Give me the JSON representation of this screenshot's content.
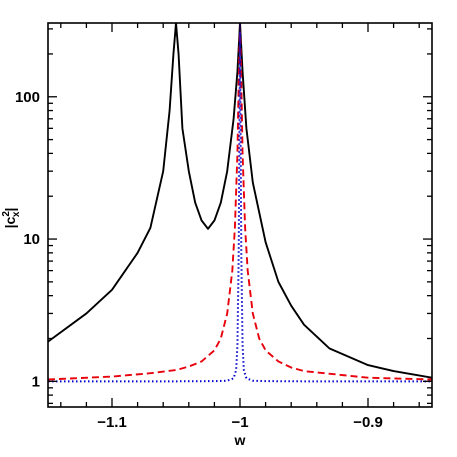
{
  "chart_data": {
    "type": "line",
    "title": "",
    "xlabel": "w",
    "ylabel": "|c",
    "ylabel_sup": "2",
    "ylabel_sub": "x",
    "ylabel_close": "|",
    "xlim": [
      -1.15,
      -0.85
    ],
    "ylim": [
      0.66,
      330
    ],
    "yscale": "log",
    "xticks": [
      {
        "value": -1.1,
        "label": "−1.1"
      },
      {
        "value": -1.0,
        "label": "−1"
      },
      {
        "value": -0.9,
        "label": "−0.9"
      }
    ],
    "yticks": [
      {
        "value": 1,
        "label": "1"
      },
      {
        "value": 10,
        "label": "10"
      },
      {
        "value": 100,
        "label": "100"
      }
    ],
    "series": [
      {
        "color": "#000000",
        "dash": "solid",
        "x": [
          -1.15,
          -1.12,
          -1.1,
          -1.08,
          -1.07,
          -1.06,
          -1.055,
          -1.052,
          -1.05,
          -1.048,
          -1.045,
          -1.04,
          -1.035,
          -1.03,
          -1.025,
          -1.02,
          -1.015,
          -1.01,
          -1.005,
          -1.002,
          -1.0,
          -0.998,
          -0.995,
          -0.99,
          -0.98,
          -0.97,
          -0.96,
          -0.95,
          -0.93,
          -0.9,
          -0.88,
          -0.85
        ],
        "y": [
          1.9,
          3.0,
          4.4,
          8.0,
          12.0,
          30.0,
          80.0,
          200.0,
          330.0,
          200.0,
          60.0,
          30.0,
          18.0,
          13.5,
          11.8,
          13.5,
          18.0,
          30.0,
          70.0,
          150.0,
          330.0,
          150.0,
          60.0,
          25.0,
          9.5,
          5.0,
          3.4,
          2.5,
          1.7,
          1.3,
          1.18,
          1.06
        ]
      },
      {
        "color": "#e8000b",
        "dash": "dashed",
        "x": [
          -1.15,
          -1.1,
          -1.07,
          -1.05,
          -1.04,
          -1.03,
          -1.02,
          -1.015,
          -1.01,
          -1.006,
          -1.004,
          -1.002,
          -1.001,
          -1.0,
          -0.999,
          -0.998,
          -0.996,
          -0.994,
          -0.99,
          -0.985,
          -0.98,
          -0.97,
          -0.96,
          -0.95,
          -0.9,
          -0.85
        ],
        "y": [
          1.03,
          1.08,
          1.14,
          1.2,
          1.27,
          1.38,
          1.65,
          2.0,
          3.0,
          6.0,
          12.0,
          40.0,
          130.0,
          330.0,
          130.0,
          40.0,
          12.0,
          6.0,
          3.0,
          2.0,
          1.65,
          1.38,
          1.25,
          1.18,
          1.06,
          1.03
        ]
      },
      {
        "color": "#0000cc",
        "dash": "dotted",
        "x": [
          -1.15,
          -1.05,
          -1.02,
          -1.01,
          -1.005,
          -1.003,
          -1.002,
          -1.001,
          -1.0005,
          -1.0,
          -0.9995,
          -0.999,
          -0.998,
          -0.997,
          -0.995,
          -0.99,
          -0.98,
          -0.95,
          -0.85
        ],
        "y": [
          1.0,
          1.0,
          1.003,
          1.01,
          1.05,
          1.2,
          1.8,
          8.0,
          50.0,
          330.0,
          50.0,
          8.0,
          1.8,
          1.2,
          1.05,
          1.01,
          1.003,
          1.0,
          1.0
        ]
      }
    ]
  }
}
